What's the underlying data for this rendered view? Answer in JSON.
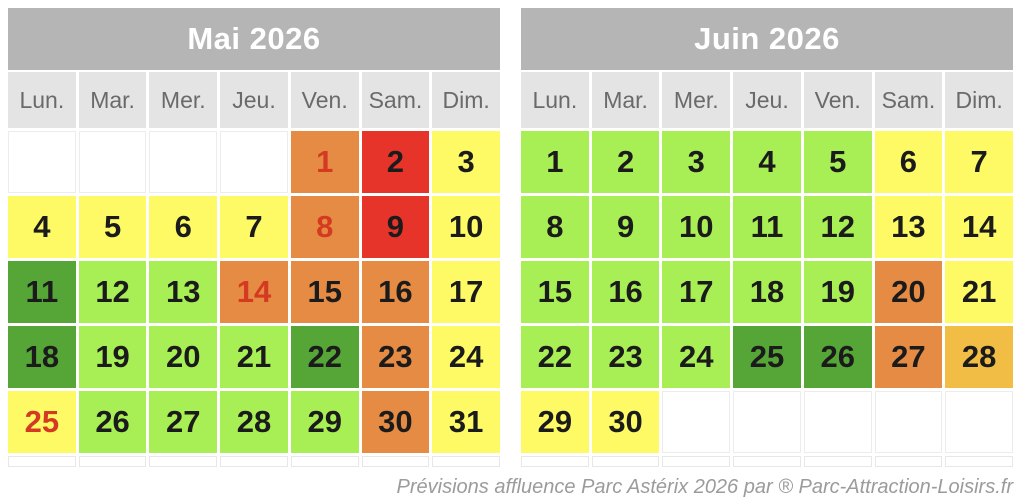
{
  "caption": "Prévisions affluence Parc Astérix 2026 par ® Parc-Attraction-Loisirs.fr",
  "colors": {
    "title_bg": "#b5b5b5",
    "weekday_bg": "#e4e4e4",
    "weekday_text": "#6a6a6a",
    "day_text": "#1b1b1b",
    "holiday_text": "#d43a22",
    "levels": {
      "green-dark": "#55a636",
      "green-light": "#a8ee55",
      "yellow": "#fdfa66",
      "amber": "#f2bd45",
      "orange": "#e68b43",
      "red": "#e6342b"
    }
  },
  "chart_data": [
    {
      "type": "heatmap",
      "title": "Mai 2026",
      "weekdays": [
        "Lun.",
        "Mar.",
        "Mer.",
        "Jeu.",
        "Ven.",
        "Sam.",
        "Dim."
      ],
      "legend": "cell color encodes predicted crowd level (green-dark = lowest, green-light = low, yellow = medium, amber = fairly high, orange = high, red = highest); red day numbers = French public holidays",
      "weeks": [
        [
          null,
          null,
          null,
          null,
          {
            "day": 1,
            "level": "orange",
            "holiday": true
          },
          {
            "day": 2,
            "level": "red"
          },
          {
            "day": 3,
            "level": "yellow"
          }
        ],
        [
          {
            "day": 4,
            "level": "yellow"
          },
          {
            "day": 5,
            "level": "yellow"
          },
          {
            "day": 6,
            "level": "yellow"
          },
          {
            "day": 7,
            "level": "yellow"
          },
          {
            "day": 8,
            "level": "orange",
            "holiday": true
          },
          {
            "day": 9,
            "level": "red"
          },
          {
            "day": 10,
            "level": "yellow"
          }
        ],
        [
          {
            "day": 11,
            "level": "green-dark"
          },
          {
            "day": 12,
            "level": "green-light"
          },
          {
            "day": 13,
            "level": "green-light"
          },
          {
            "day": 14,
            "level": "orange",
            "holiday": true
          },
          {
            "day": 15,
            "level": "orange"
          },
          {
            "day": 16,
            "level": "orange"
          },
          {
            "day": 17,
            "level": "yellow"
          }
        ],
        [
          {
            "day": 18,
            "level": "green-dark"
          },
          {
            "day": 19,
            "level": "green-light"
          },
          {
            "day": 20,
            "level": "green-light"
          },
          {
            "day": 21,
            "level": "green-light"
          },
          {
            "day": 22,
            "level": "green-dark"
          },
          {
            "day": 23,
            "level": "orange"
          },
          {
            "day": 24,
            "level": "yellow"
          }
        ],
        [
          {
            "day": 25,
            "level": "yellow",
            "holiday": true
          },
          {
            "day": 26,
            "level": "green-light"
          },
          {
            "day": 27,
            "level": "green-light"
          },
          {
            "day": 28,
            "level": "green-light"
          },
          {
            "day": 29,
            "level": "green-light"
          },
          {
            "day": 30,
            "level": "orange"
          },
          {
            "day": 31,
            "level": "yellow"
          }
        ]
      ]
    },
    {
      "type": "heatmap",
      "title": "Juin 2026",
      "weekdays": [
        "Lun.",
        "Mar.",
        "Mer.",
        "Jeu.",
        "Ven.",
        "Sam.",
        "Dim."
      ],
      "legend": "cell color encodes predicted crowd level (green-dark = lowest, green-light = low, yellow = medium, amber = fairly high, orange = high, red = highest)",
      "weeks": [
        [
          {
            "day": 1,
            "level": "green-light"
          },
          {
            "day": 2,
            "level": "green-light"
          },
          {
            "day": 3,
            "level": "green-light"
          },
          {
            "day": 4,
            "level": "green-light"
          },
          {
            "day": 5,
            "level": "green-light"
          },
          {
            "day": 6,
            "level": "yellow"
          },
          {
            "day": 7,
            "level": "yellow"
          }
        ],
        [
          {
            "day": 8,
            "level": "green-light"
          },
          {
            "day": 9,
            "level": "green-light"
          },
          {
            "day": 10,
            "level": "green-light"
          },
          {
            "day": 11,
            "level": "green-light"
          },
          {
            "day": 12,
            "level": "green-light"
          },
          {
            "day": 13,
            "level": "yellow"
          },
          {
            "day": 14,
            "level": "yellow"
          }
        ],
        [
          {
            "day": 15,
            "level": "green-light"
          },
          {
            "day": 16,
            "level": "green-light"
          },
          {
            "day": 17,
            "level": "green-light"
          },
          {
            "day": 18,
            "level": "green-light"
          },
          {
            "day": 19,
            "level": "green-light"
          },
          {
            "day": 20,
            "level": "orange"
          },
          {
            "day": 21,
            "level": "yellow"
          }
        ],
        [
          {
            "day": 22,
            "level": "green-light"
          },
          {
            "day": 23,
            "level": "green-light"
          },
          {
            "day": 24,
            "level": "green-light"
          },
          {
            "day": 25,
            "level": "green-dark"
          },
          {
            "day": 26,
            "level": "green-dark"
          },
          {
            "day": 27,
            "level": "orange"
          },
          {
            "day": 28,
            "level": "amber"
          }
        ],
        [
          {
            "day": 29,
            "level": "yellow"
          },
          {
            "day": 30,
            "level": "yellow"
          },
          null,
          null,
          null,
          null,
          null
        ]
      ]
    }
  ]
}
